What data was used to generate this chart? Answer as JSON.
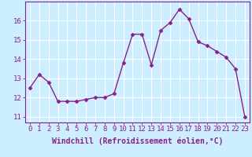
{
  "x": [
    0,
    1,
    2,
    3,
    4,
    5,
    6,
    7,
    8,
    9,
    10,
    11,
    12,
    13,
    14,
    15,
    16,
    17,
    18,
    19,
    20,
    21,
    22,
    23
  ],
  "y": [
    12.5,
    13.2,
    12.8,
    11.8,
    11.8,
    11.8,
    11.9,
    12.0,
    12.0,
    12.2,
    13.8,
    15.3,
    15.3,
    13.7,
    15.5,
    15.9,
    16.6,
    16.1,
    14.9,
    14.7,
    14.4,
    14.1,
    13.5,
    11.0
  ],
  "line_color": "#882288",
  "marker": "D",
  "marker_size": 2.5,
  "bg_color": "#cceeff",
  "grid_color": "#aadddd",
  "xlabel": "Windchill (Refroidissement éolien,°C)",
  "xlabel_fontsize": 7,
  "tick_fontsize": 6.5,
  "ylim": [
    10.7,
    17.0
  ],
  "yticks": [
    11,
    12,
    13,
    14,
    15,
    16
  ],
  "xticks": [
    0,
    1,
    2,
    3,
    4,
    5,
    6,
    7,
    8,
    9,
    10,
    11,
    12,
    13,
    14,
    15,
    16,
    17,
    18,
    19,
    20,
    21,
    22,
    23
  ],
  "linewidth": 1.0
}
